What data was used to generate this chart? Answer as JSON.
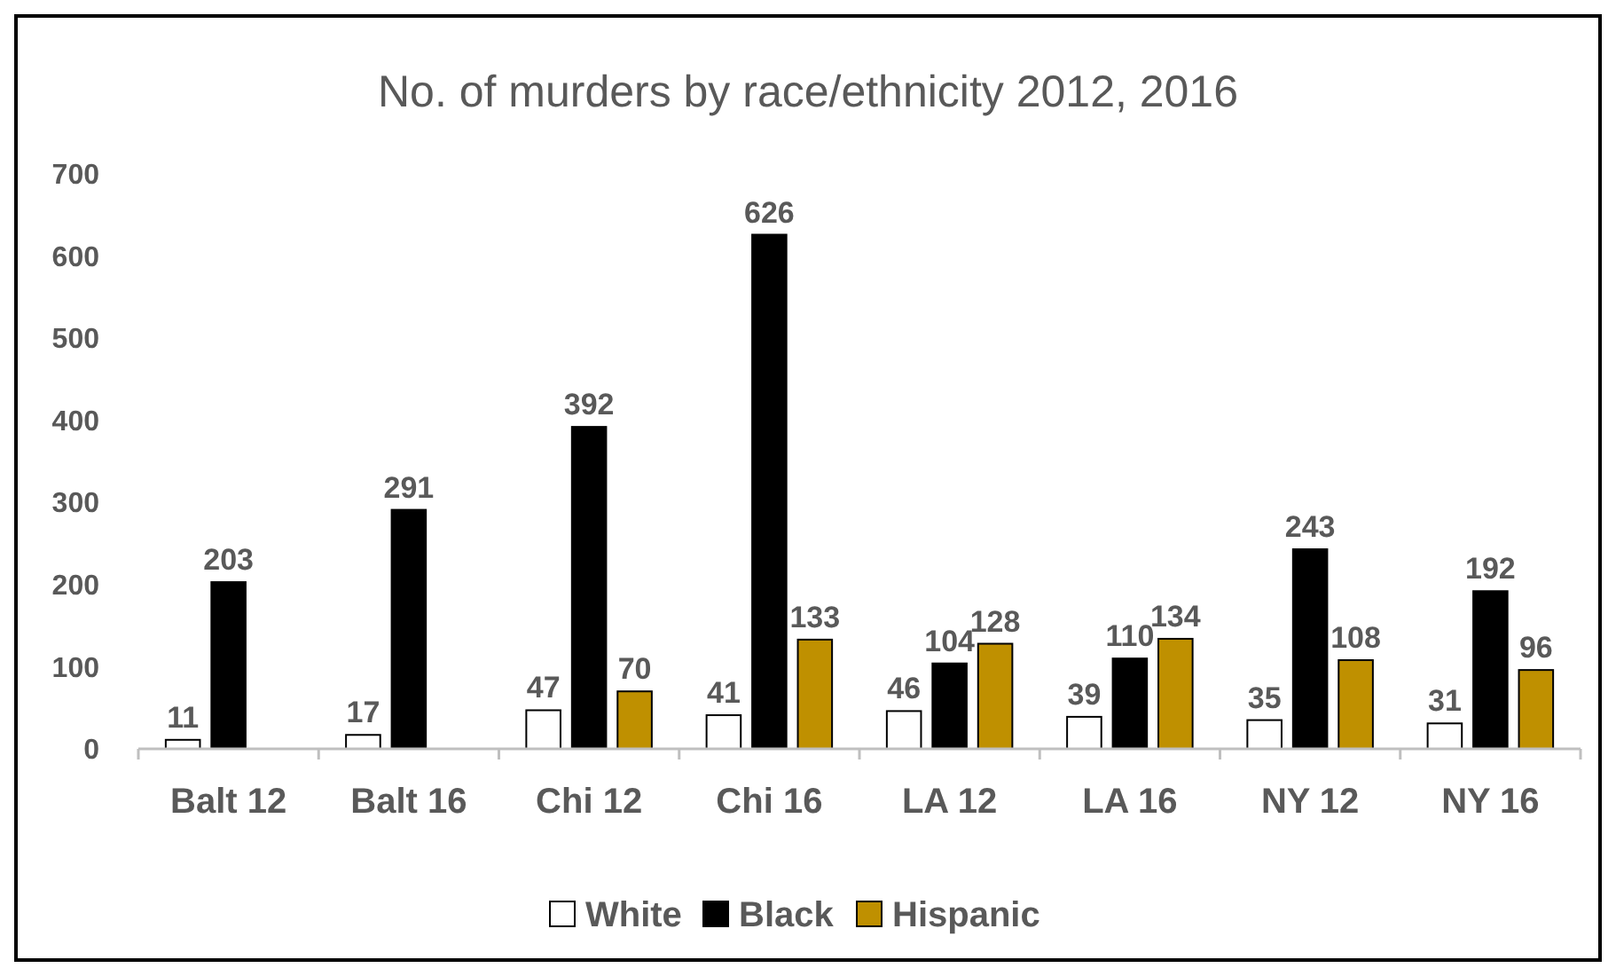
{
  "chart_data": {
    "type": "bar",
    "title": "No. of murders by race/ethnicity 2012, 2016",
    "categories": [
      "Balt 12",
      "Balt 16",
      "Chi 12",
      "Chi 16",
      "LA 12",
      "LA 16",
      "NY 12",
      "NY 16"
    ],
    "series": [
      {
        "name": "White",
        "color": "#ffffff",
        "values": [
          11,
          17,
          47,
          41,
          46,
          39,
          35,
          31
        ]
      },
      {
        "name": "Black",
        "color": "#000000",
        "values": [
          203,
          291,
          392,
          626,
          104,
          110,
          243,
          192
        ]
      },
      {
        "name": "Hispanic",
        "color": "#bf9000",
        "values": [
          null,
          null,
          70,
          133,
          128,
          134,
          108,
          96
        ]
      }
    ],
    "ylim": [
      0,
      700
    ],
    "yticks": [
      0,
      100,
      200,
      300,
      400,
      500,
      600,
      700
    ],
    "grid": false,
    "legend": "bottom",
    "data_labels": true
  }
}
